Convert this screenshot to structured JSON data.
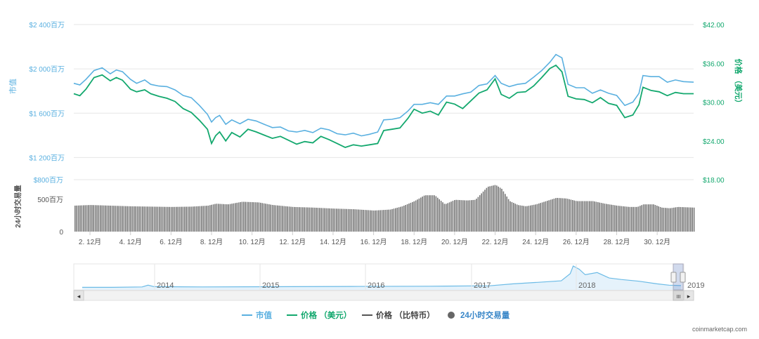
{
  "chart_data": {
    "type": "line",
    "left_axis": {
      "label": "市值",
      "ticks": [
        "$2 400百万",
        "$2 000百万",
        "$1 600百万",
        "$1 200百万"
      ],
      "tick_values": [
        2400,
        2000,
        1600,
        1200
      ],
      "range": [
        1000,
        2400
      ],
      "color": "#5ab0e0"
    },
    "right_axis": {
      "label": "价格 （美元）",
      "ticks": [
        "$42.00",
        "$36.00",
        "$30.00",
        "$24.00",
        "$18.00"
      ],
      "tick_values": [
        42,
        36,
        30,
        24,
        18
      ],
      "range": [
        18,
        42
      ],
      "color": "#13a86e"
    },
    "volume_axis": {
      "label": "24小时交易量",
      "ticks": [
        "$800百万",
        "500百万",
        "0"
      ],
      "tick_values": [
        800,
        500,
        0
      ],
      "range": [
        0,
        800
      ]
    },
    "x_ticks": [
      "2. 12月",
      "4. 12月",
      "6. 12月",
      "8. 12月",
      "10. 12月",
      "12. 12月",
      "14. 12月",
      "16. 12月",
      "18. 12月",
      "20. 12月",
      "22. 12月",
      "24. 12月",
      "26. 12月",
      "28. 12月",
      "30. 12月"
    ],
    "x_tick_days": [
      2,
      4,
      6,
      8,
      10,
      12,
      14,
      16,
      18,
      20,
      22,
      24,
      26,
      28,
      30
    ],
    "x_range_days": [
      1.2,
      31.8
    ],
    "series": [
      {
        "name": "市值",
        "color": "#5ab0e0",
        "axis": "left",
        "points": [
          [
            1.2,
            1870
          ],
          [
            1.5,
            1855
          ],
          [
            1.8,
            1905
          ],
          [
            2.2,
            1985
          ],
          [
            2.6,
            2010
          ],
          [
            3.0,
            1955
          ],
          [
            3.3,
            1990
          ],
          [
            3.6,
            1975
          ],
          [
            4.0,
            1905
          ],
          [
            4.3,
            1870
          ],
          [
            4.7,
            1900
          ],
          [
            5.0,
            1860
          ],
          [
            5.4,
            1845
          ],
          [
            5.8,
            1840
          ],
          [
            6.2,
            1810
          ],
          [
            6.6,
            1760
          ],
          [
            7.0,
            1740
          ],
          [
            7.4,
            1670
          ],
          [
            7.8,
            1590
          ],
          [
            8.0,
            1520
          ],
          [
            8.2,
            1560
          ],
          [
            8.4,
            1580
          ],
          [
            8.7,
            1500
          ],
          [
            9.0,
            1540
          ],
          [
            9.4,
            1505
          ],
          [
            9.8,
            1545
          ],
          [
            10.2,
            1530
          ],
          [
            10.6,
            1500
          ],
          [
            11.0,
            1470
          ],
          [
            11.4,
            1475
          ],
          [
            11.8,
            1440
          ],
          [
            12.2,
            1430
          ],
          [
            12.6,
            1445
          ],
          [
            13.0,
            1425
          ],
          [
            13.4,
            1465
          ],
          [
            13.8,
            1450
          ],
          [
            14.2,
            1415
          ],
          [
            14.6,
            1405
          ],
          [
            15.0,
            1420
          ],
          [
            15.4,
            1395
          ],
          [
            15.8,
            1410
          ],
          [
            16.2,
            1430
          ],
          [
            16.5,
            1540
          ],
          [
            16.9,
            1545
          ],
          [
            17.3,
            1560
          ],
          [
            17.7,
            1620
          ],
          [
            18.0,
            1680
          ],
          [
            18.4,
            1680
          ],
          [
            18.8,
            1695
          ],
          [
            19.2,
            1680
          ],
          [
            19.6,
            1755
          ],
          [
            20.0,
            1755
          ],
          [
            20.4,
            1775
          ],
          [
            20.8,
            1790
          ],
          [
            21.2,
            1850
          ],
          [
            21.6,
            1865
          ],
          [
            22.0,
            1940
          ],
          [
            22.3,
            1870
          ],
          [
            22.7,
            1840
          ],
          [
            23.1,
            1860
          ],
          [
            23.5,
            1870
          ],
          [
            23.9,
            1925
          ],
          [
            24.3,
            1985
          ],
          [
            24.7,
            2060
          ],
          [
            25.0,
            2130
          ],
          [
            25.3,
            2100
          ],
          [
            25.6,
            1860
          ],
          [
            26.0,
            1830
          ],
          [
            26.4,
            1830
          ],
          [
            26.8,
            1780
          ],
          [
            27.2,
            1810
          ],
          [
            27.6,
            1780
          ],
          [
            28.0,
            1760
          ],
          [
            28.4,
            1670
          ],
          [
            28.8,
            1700
          ],
          [
            29.1,
            1780
          ],
          [
            29.3,
            1940
          ],
          [
            29.7,
            1930
          ],
          [
            30.1,
            1930
          ],
          [
            30.5,
            1880
          ],
          [
            30.9,
            1900
          ],
          [
            31.3,
            1885
          ],
          [
            31.8,
            1880
          ]
        ]
      },
      {
        "name": "价格 （美元）",
        "color": "#13a86e",
        "axis": "right",
        "points": [
          [
            1.2,
            31.3
          ],
          [
            1.5,
            31.0
          ],
          [
            1.8,
            32.0
          ],
          [
            2.2,
            33.8
          ],
          [
            2.6,
            34.2
          ],
          [
            3.0,
            33.3
          ],
          [
            3.3,
            33.8
          ],
          [
            3.6,
            33.4
          ],
          [
            4.0,
            32.0
          ],
          [
            4.3,
            31.6
          ],
          [
            4.7,
            31.9
          ],
          [
            5.0,
            31.3
          ],
          [
            5.4,
            30.9
          ],
          [
            5.8,
            30.6
          ],
          [
            6.2,
            30.1
          ],
          [
            6.6,
            29.0
          ],
          [
            7.0,
            28.4
          ],
          [
            7.4,
            27.2
          ],
          [
            7.8,
            25.8
          ],
          [
            8.0,
            23.6
          ],
          [
            8.2,
            24.8
          ],
          [
            8.4,
            25.4
          ],
          [
            8.7,
            24.0
          ],
          [
            9.0,
            25.3
          ],
          [
            9.4,
            24.6
          ],
          [
            9.8,
            25.8
          ],
          [
            10.2,
            25.4
          ],
          [
            10.6,
            24.9
          ],
          [
            11.0,
            24.4
          ],
          [
            11.4,
            24.7
          ],
          [
            11.8,
            24.1
          ],
          [
            12.2,
            23.5
          ],
          [
            12.6,
            23.9
          ],
          [
            13.0,
            23.7
          ],
          [
            13.4,
            24.7
          ],
          [
            13.8,
            24.2
          ],
          [
            14.2,
            23.6
          ],
          [
            14.6,
            23.0
          ],
          [
            15.0,
            23.4
          ],
          [
            15.4,
            23.2
          ],
          [
            15.8,
            23.4
          ],
          [
            16.2,
            23.6
          ],
          [
            16.5,
            25.6
          ],
          [
            16.9,
            25.8
          ],
          [
            17.3,
            26.0
          ],
          [
            17.7,
            27.5
          ],
          [
            18.0,
            28.9
          ],
          [
            18.4,
            28.3
          ],
          [
            18.8,
            28.6
          ],
          [
            19.2,
            28.0
          ],
          [
            19.6,
            30.0
          ],
          [
            20.0,
            29.7
          ],
          [
            20.4,
            29.0
          ],
          [
            20.8,
            30.2
          ],
          [
            21.2,
            31.4
          ],
          [
            21.6,
            31.9
          ],
          [
            22.0,
            33.6
          ],
          [
            22.3,
            31.2
          ],
          [
            22.7,
            30.6
          ],
          [
            23.1,
            31.5
          ],
          [
            23.5,
            31.6
          ],
          [
            23.9,
            32.5
          ],
          [
            24.3,
            33.8
          ],
          [
            24.7,
            35.2
          ],
          [
            25.0,
            35.7
          ],
          [
            25.3,
            34.7
          ],
          [
            25.6,
            30.9
          ],
          [
            26.0,
            30.5
          ],
          [
            26.4,
            30.4
          ],
          [
            26.8,
            29.9
          ],
          [
            27.2,
            30.7
          ],
          [
            27.6,
            29.8
          ],
          [
            28.0,
            29.5
          ],
          [
            28.4,
            27.6
          ],
          [
            28.8,
            28.0
          ],
          [
            29.1,
            29.6
          ],
          [
            29.3,
            32.3
          ],
          [
            29.7,
            31.8
          ],
          [
            30.1,
            31.6
          ],
          [
            30.5,
            31.0
          ],
          [
            30.9,
            31.5
          ],
          [
            31.3,
            31.3
          ],
          [
            31.8,
            31.3
          ]
        ]
      }
    ],
    "volume": {
      "name": "24小时交易量",
      "color": "#777777",
      "points": [
        [
          1.2,
          400
        ],
        [
          2.0,
          410
        ],
        [
          3.0,
          400
        ],
        [
          4.0,
          390
        ],
        [
          5.0,
          385
        ],
        [
          6.0,
          380
        ],
        [
          7.0,
          385
        ],
        [
          7.8,
          400
        ],
        [
          8.2,
          430
        ],
        [
          8.8,
          420
        ],
        [
          9.5,
          460
        ],
        [
          10.3,
          450
        ],
        [
          11.0,
          410
        ],
        [
          12.0,
          380
        ],
        [
          13.0,
          370
        ],
        [
          14.0,
          355
        ],
        [
          15.0,
          345
        ],
        [
          16.0,
          325
        ],
        [
          16.8,
          340
        ],
        [
          17.4,
          390
        ],
        [
          18.0,
          470
        ],
        [
          18.5,
          560
        ],
        [
          19.0,
          560
        ],
        [
          19.5,
          420
        ],
        [
          20.0,
          490
        ],
        [
          20.6,
          480
        ],
        [
          21.0,
          490
        ],
        [
          21.2,
          555
        ],
        [
          21.6,
          690
        ],
        [
          22.0,
          720
        ],
        [
          22.3,
          660
        ],
        [
          22.7,
          470
        ],
        [
          23.1,
          410
        ],
        [
          23.5,
          390
        ],
        [
          24.0,
          420
        ],
        [
          24.5,
          470
        ],
        [
          25.0,
          520
        ],
        [
          25.5,
          510
        ],
        [
          26.0,
          470
        ],
        [
          26.8,
          470
        ],
        [
          27.4,
          430
        ],
        [
          28.0,
          400
        ],
        [
          28.6,
          380
        ],
        [
          29.0,
          380
        ],
        [
          29.3,
          420
        ],
        [
          29.8,
          420
        ],
        [
          30.2,
          370
        ],
        [
          30.6,
          360
        ],
        [
          31.0,
          380
        ],
        [
          31.8,
          370
        ]
      ]
    }
  },
  "navigator": {
    "year_labels": [
      "2014",
      "2015",
      "2016",
      "2017",
      "2018",
      "2019"
    ],
    "series_points": [
      [
        0,
        0.02
      ],
      [
        5,
        0.02
      ],
      [
        10,
        0.04
      ],
      [
        11,
        0.12
      ],
      [
        12,
        0.05
      ],
      [
        20,
        0.04
      ],
      [
        35,
        0.05
      ],
      [
        45,
        0.06
      ],
      [
        58,
        0.07
      ],
      [
        68,
        0.09
      ],
      [
        72,
        0.18
      ],
      [
        76,
        0.25
      ],
      [
        80,
        0.32
      ],
      [
        81.5,
        0.65
      ],
      [
        82,
        1.0
      ],
      [
        83,
        0.85
      ],
      [
        84,
        0.6
      ],
      [
        86,
        0.7
      ],
      [
        88,
        0.45
      ],
      [
        90,
        0.38
      ],
      [
        93,
        0.3
      ],
      [
        96,
        0.18
      ],
      [
        98,
        0.12
      ],
      [
        100,
        0.1
      ]
    ]
  },
  "legend": [
    {
      "label": "市值",
      "color": "#5ab0e0",
      "symbol": "line"
    },
    {
      "label": "价格 （美元）",
      "color": "#13a86e",
      "symbol": "line"
    },
    {
      "label": "价格 （比特币）",
      "color": "#555555",
      "symbol": "line"
    },
    {
      "label": "24小时交易量",
      "color": "#666666",
      "symbol": "dot"
    }
  ],
  "watermark": "coinmarketcap.com",
  "scroll_arrows": {
    "left": "◂",
    "right": "▸",
    "grip": "III"
  }
}
